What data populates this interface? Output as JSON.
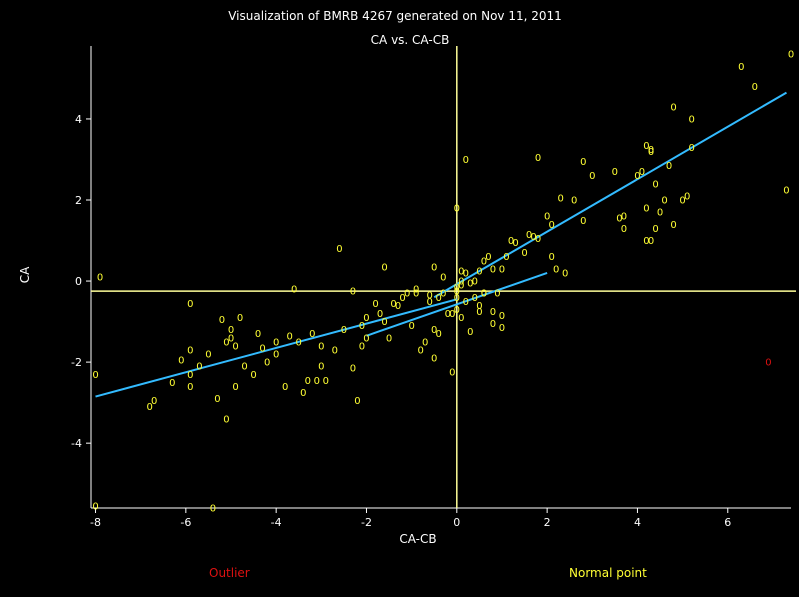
{
  "colors": {
    "background": "#000000",
    "axes": "#ffffff",
    "normal_point": "#ffff33",
    "outlier": "#dd1111",
    "fit_line": "#33bbff",
    "reference_line": "#ffff99"
  },
  "legend": {
    "outlier_label": "Outlier",
    "normal_label": "Normal point"
  },
  "chart_data": {
    "type": "scatter",
    "title": "Visualization of BMRB 4267 generated on Nov 11, 2011",
    "subtitle": "CA vs. CA-CB",
    "xlabel": "CA-CB",
    "ylabel": "CA",
    "xlim": [
      -8.1,
      7.4
    ],
    "ylim": [
      -5.6,
      5.8
    ],
    "xticks": [
      -8,
      -6,
      -4,
      -2,
      0,
      2,
      4,
      6
    ],
    "yticks": [
      -4,
      -2,
      0,
      2,
      4
    ],
    "point_marker": "0",
    "reference_lines": {
      "x": 0.0,
      "y": -0.25
    },
    "fit_lines": [
      {
        "x": [
          -8.0,
          0.0
        ],
        "y": [
          -2.85,
          -0.45
        ]
      },
      {
        "x": [
          -2.0,
          2.0
        ],
        "y": [
          -1.35,
          0.2
        ]
      },
      {
        "x": [
          -0.5,
          7.3
        ],
        "y": [
          -0.4,
          4.65
        ]
      }
    ],
    "series": [
      {
        "kind": "normal",
        "points": [
          [
            -8.0,
            -5.55
          ],
          [
            -7.9,
            0.1
          ],
          [
            -8.0,
            -2.3
          ],
          [
            -6.8,
            -3.1
          ],
          [
            -6.7,
            -2.95
          ],
          [
            -6.3,
            -2.5
          ],
          [
            -6.1,
            -1.95
          ],
          [
            -5.9,
            -2.3
          ],
          [
            -5.9,
            -1.7
          ],
          [
            -5.9,
            -0.55
          ],
          [
            -5.9,
            -2.6
          ],
          [
            -5.7,
            -2.1
          ],
          [
            -5.5,
            -1.8
          ],
          [
            -5.3,
            -2.9
          ],
          [
            -5.4,
            -5.6
          ],
          [
            -5.2,
            -0.95
          ],
          [
            -5.1,
            -3.4
          ],
          [
            -5.1,
            -1.5
          ],
          [
            -5.0,
            -1.2
          ],
          [
            -5.0,
            -1.4
          ],
          [
            -4.9,
            -1.6
          ],
          [
            -4.9,
            -2.6
          ],
          [
            -4.8,
            -0.9
          ],
          [
            -4.7,
            -2.1
          ],
          [
            -4.5,
            -2.3
          ],
          [
            -4.4,
            -1.3
          ],
          [
            -4.3,
            -1.65
          ],
          [
            -4.2,
            -2.0
          ],
          [
            -4.0,
            -1.5
          ],
          [
            -4.0,
            -1.8
          ],
          [
            -3.8,
            -2.6
          ],
          [
            -3.7,
            -1.35
          ],
          [
            -3.6,
            -0.2
          ],
          [
            -3.5,
            -1.5
          ],
          [
            -3.4,
            -2.75
          ],
          [
            -3.3,
            -2.45
          ],
          [
            -3.2,
            -1.3
          ],
          [
            -3.1,
            -2.45
          ],
          [
            -3.0,
            -2.1
          ],
          [
            -2.9,
            -2.45
          ],
          [
            -2.7,
            -1.7
          ],
          [
            -2.6,
            0.8
          ],
          [
            -2.5,
            -1.2
          ],
          [
            -2.3,
            -0.25
          ],
          [
            -2.3,
            -2.15
          ],
          [
            -2.2,
            -2.95
          ],
          [
            -2.1,
            -1.1
          ],
          [
            -2.1,
            -1.6
          ],
          [
            -2.0,
            -0.9
          ],
          [
            -1.7,
            -0.8
          ],
          [
            -1.6,
            0.35
          ],
          [
            -1.6,
            -1.0
          ],
          [
            -1.5,
            -1.4
          ],
          [
            -1.4,
            -0.55
          ],
          [
            -1.3,
            -0.6
          ],
          [
            -1.2,
            -0.4
          ],
          [
            -1.1,
            -0.3
          ],
          [
            -1.0,
            -1.1
          ],
          [
            -0.9,
            -0.2
          ],
          [
            -0.9,
            -0.3
          ],
          [
            -0.8,
            -1.7
          ],
          [
            -0.7,
            -1.5
          ],
          [
            -0.6,
            -0.5
          ],
          [
            -0.6,
            -0.35
          ],
          [
            -0.5,
            -1.9
          ],
          [
            -0.5,
            -1.2
          ],
          [
            -0.4,
            -1.3
          ],
          [
            -0.4,
            -0.4
          ],
          [
            -0.3,
            -0.3
          ],
          [
            -0.3,
            0.1
          ],
          [
            -0.1,
            -0.8
          ],
          [
            -0.1,
            -2.25
          ],
          [
            0.0,
            -0.4
          ],
          [
            0.0,
            -0.25
          ],
          [
            0.1,
            0.25
          ],
          [
            0.2,
            -0.5
          ],
          [
            -0.5,
            0.35
          ],
          [
            -0.2,
            -0.8
          ],
          [
            0.1,
            -0.9
          ],
          [
            0.3,
            -1.25
          ],
          [
            0.4,
            -0.4
          ],
          [
            0.5,
            -0.6
          ],
          [
            0.5,
            -0.75
          ],
          [
            0.1,
            0.0
          ],
          [
            0.2,
            0.2
          ],
          [
            0.5,
            0.25
          ],
          [
            0.3,
            -0.05
          ],
          [
            0.4,
            0.0
          ],
          [
            0.6,
            -0.3
          ],
          [
            0.0,
            -0.15
          ],
          [
            0.1,
            -0.1
          ],
          [
            0.0,
            -0.7
          ],
          [
            0.0,
            1.8
          ],
          [
            0.2,
            3.0
          ],
          [
            0.6,
            0.5
          ],
          [
            0.7,
            0.6
          ],
          [
            0.8,
            0.3
          ],
          [
            0.9,
            -0.3
          ],
          [
            0.6,
            -0.3
          ],
          [
            0.8,
            -0.75
          ],
          [
            0.8,
            -1.05
          ],
          [
            1.0,
            -0.85
          ],
          [
            1.0,
            -1.15
          ],
          [
            1.0,
            0.3
          ],
          [
            1.1,
            0.6
          ],
          [
            1.2,
            1.0
          ],
          [
            1.3,
            0.95
          ],
          [
            1.5,
            0.7
          ],
          [
            1.6,
            1.15
          ],
          [
            1.7,
            1.1
          ],
          [
            1.8,
            1.05
          ],
          [
            1.8,
            3.05
          ],
          [
            2.0,
            1.6
          ],
          [
            2.1,
            1.4
          ],
          [
            2.1,
            0.6
          ],
          [
            2.2,
            0.3
          ],
          [
            2.3,
            2.05
          ],
          [
            2.4,
            0.2
          ],
          [
            2.6,
            2.0
          ],
          [
            2.8,
            2.95
          ],
          [
            2.8,
            1.5
          ],
          [
            3.0,
            2.6
          ],
          [
            3.5,
            2.7
          ],
          [
            3.6,
            1.55
          ],
          [
            3.7,
            1.3
          ],
          [
            3.7,
            1.6
          ],
          [
            4.0,
            2.6
          ],
          [
            4.1,
            2.7
          ],
          [
            4.2,
            3.35
          ],
          [
            4.3,
            3.25
          ],
          [
            4.3,
            3.2
          ],
          [
            4.2,
            1.8
          ],
          [
            4.2,
            1.0
          ],
          [
            4.3,
            1.0
          ],
          [
            4.4,
            2.4
          ],
          [
            4.4,
            1.3
          ],
          [
            4.5,
            1.7
          ],
          [
            4.6,
            2.0
          ],
          [
            4.7,
            2.85
          ],
          [
            4.8,
            4.3
          ],
          [
            4.8,
            1.4
          ],
          [
            5.0,
            2.0
          ],
          [
            5.1,
            2.1
          ],
          [
            5.2,
            4.0
          ],
          [
            5.2,
            3.3
          ],
          [
            6.3,
            5.3
          ],
          [
            6.6,
            4.8
          ],
          [
            7.3,
            2.25
          ],
          [
            7.4,
            5.6
          ],
          [
            -1.8,
            -0.55
          ],
          [
            -3.0,
            -1.6
          ],
          [
            -2.0,
            -1.4
          ]
        ]
      },
      {
        "kind": "outlier",
        "points": [
          [
            6.9,
            -2.0
          ]
        ]
      }
    ]
  }
}
